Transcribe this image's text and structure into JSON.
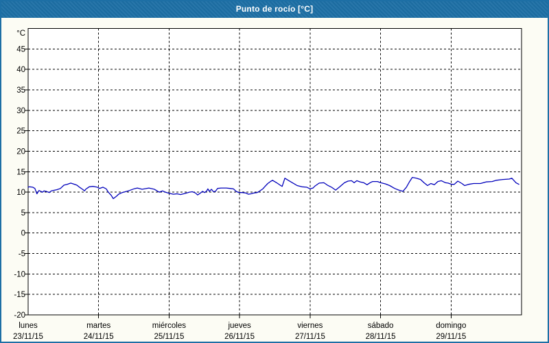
{
  "window": {
    "title": "Punto de rocío [°C]"
  },
  "colors": {
    "title_bar": "#1d6fa5",
    "title_text": "#ffffff",
    "page_bg": "#fcfcf4",
    "page_border": "#1d6fa5",
    "plot_bg": "#ffffff",
    "axis": "#000000",
    "grid": "#000000",
    "label_text": "#000000",
    "line": "#0000bb"
  },
  "chart_data": {
    "type": "line",
    "title": "Punto de rocío [°C]",
    "ylabel": "°C",
    "xlabel": "",
    "ylim": [
      -20,
      50
    ],
    "y_ticks": [
      45,
      40,
      35,
      30,
      25,
      20,
      15,
      10,
      5,
      0,
      -5,
      -10,
      -15,
      -20
    ],
    "x_unit": "hours",
    "xlim": [
      0,
      168
    ],
    "hours_per_day": 24,
    "grid": "dashed",
    "legend_position": "none",
    "x_days": [
      {
        "name": "lunes",
        "date": "23/11/15"
      },
      {
        "name": "martes",
        "date": "24/11/15"
      },
      {
        "name": "miércoles",
        "date": "25/11/15"
      },
      {
        "name": "jueves",
        "date": "26/11/15"
      },
      {
        "name": "viernes",
        "date": "27/11/15"
      },
      {
        "name": "sábado",
        "date": "28/11/15"
      },
      {
        "name": "domingo",
        "date": "29/11/15"
      }
    ],
    "series": [
      {
        "name": "Punto de rocío",
        "color": "#0000bb",
        "points": [
          [
            0,
            11.2
          ],
          [
            0.5,
            11.3
          ],
          [
            1.6,
            11.2
          ],
          [
            2.3,
            10.9
          ],
          [
            3,
            9.6
          ],
          [
            3.7,
            10.4
          ],
          [
            4.9,
            10
          ],
          [
            5.4,
            10.3
          ],
          [
            6.1,
            10.2
          ],
          [
            7.2,
            9.9
          ],
          [
            7.9,
            10.3
          ],
          [
            9.8,
            10.6
          ],
          [
            11,
            10.9
          ],
          [
            12.2,
            11.7
          ],
          [
            13.3,
            11.9
          ],
          [
            14.5,
            12.2
          ],
          [
            15.4,
            12
          ],
          [
            16.6,
            11.7
          ],
          [
            17.3,
            11.3
          ],
          [
            18.5,
            10.7
          ],
          [
            19.2,
            10.3
          ],
          [
            19.6,
            10.7
          ],
          [
            20.8,
            11.3
          ],
          [
            22,
            11.4
          ],
          [
            23.6,
            11.2
          ],
          [
            24.3,
            10.9
          ],
          [
            25.5,
            11.2
          ],
          [
            26.6,
            10.8
          ],
          [
            27.3,
            10
          ],
          [
            28.3,
            9.2
          ],
          [
            29,
            8.4
          ],
          [
            30.1,
            9
          ],
          [
            30.8,
            9.5
          ],
          [
            32,
            9.9
          ],
          [
            34.1,
            10.3
          ],
          [
            36,
            10.8
          ],
          [
            37.2,
            11
          ],
          [
            38.8,
            10.7
          ],
          [
            41.1,
            11
          ],
          [
            43,
            10.7
          ],
          [
            44.6,
            10
          ],
          [
            45.8,
            10.3
          ],
          [
            46.7,
            10
          ],
          [
            48.1,
            9.7
          ],
          [
            49.5,
            9.5
          ],
          [
            50.7,
            9.6
          ],
          [
            51.9,
            9.4
          ],
          [
            53.5,
            9.7
          ],
          [
            54.9,
            10
          ],
          [
            55.9,
            10.1
          ],
          [
            57,
            9.8
          ],
          [
            57.7,
            9.3
          ],
          [
            58.7,
            9.8
          ],
          [
            59.4,
            10.2
          ],
          [
            60.1,
            9.9
          ],
          [
            60.8,
            10.3
          ],
          [
            61.2,
            10.8
          ],
          [
            61.7,
            10.2
          ],
          [
            62.4,
            10.7
          ],
          [
            63.1,
            10.1
          ],
          [
            63.8,
            10.2
          ],
          [
            64.5,
            10.9
          ],
          [
            65.7,
            11
          ],
          [
            67.5,
            11
          ],
          [
            68.7,
            10.9
          ],
          [
            69.9,
            10.8
          ],
          [
            70.8,
            10.2
          ],
          [
            71.7,
            9.9
          ],
          [
            72.9,
            9.9
          ],
          [
            74.1,
            9.8
          ],
          [
            75,
            9.5
          ],
          [
            75.9,
            9.6
          ],
          [
            76.9,
            9.8
          ],
          [
            78,
            9.9
          ],
          [
            78.7,
            10.2
          ],
          [
            79.9,
            10.8
          ],
          [
            80.8,
            11.5
          ],
          [
            81.6,
            12.1
          ],
          [
            82.5,
            12.6
          ],
          [
            83.2,
            12.9
          ],
          [
            84.6,
            12.3
          ],
          [
            85.8,
            11.7
          ],
          [
            86.5,
            11.4
          ],
          [
            87.4,
            13.4
          ],
          [
            88.1,
            13.1
          ],
          [
            89.5,
            12.5
          ],
          [
            90.2,
            12.2
          ],
          [
            91.6,
            11.6
          ],
          [
            93.2,
            11.3
          ],
          [
            94.9,
            11.2
          ],
          [
            96,
            10.8
          ],
          [
            97,
            11
          ],
          [
            97.7,
            11.5
          ],
          [
            99.1,
            12.2
          ],
          [
            100.7,
            12.3
          ],
          [
            101.9,
            11.7
          ],
          [
            103.3,
            11.2
          ],
          [
            104.7,
            10.5
          ],
          [
            106.1,
            11.3
          ],
          [
            107.7,
            12.3
          ],
          [
            108.9,
            12.7
          ],
          [
            110.1,
            12.8
          ],
          [
            111,
            12.3
          ],
          [
            111.9,
            12.8
          ],
          [
            113.1,
            12.5
          ],
          [
            114.3,
            12.3
          ],
          [
            115.4,
            11.8
          ],
          [
            116.4,
            12.3
          ],
          [
            117.3,
            12.6
          ],
          [
            118.9,
            12.6
          ],
          [
            120.1,
            12.3
          ],
          [
            121.7,
            12
          ],
          [
            123.1,
            11.6
          ],
          [
            124.8,
            10.9
          ],
          [
            126.2,
            10.5
          ],
          [
            127.6,
            10.2
          ],
          [
            128.8,
            11.2
          ],
          [
            129.9,
            12.6
          ],
          [
            130.8,
            13.6
          ],
          [
            132.2,
            13.4
          ],
          [
            133.6,
            13.1
          ],
          [
            134.8,
            12.3
          ],
          [
            136,
            11.6
          ],
          [
            137.1,
            12.1
          ],
          [
            138.3,
            11.8
          ],
          [
            139.5,
            12.6
          ],
          [
            140.7,
            12.8
          ],
          [
            142.1,
            12.3
          ],
          [
            143,
            12.2
          ],
          [
            144.2,
            11.9
          ],
          [
            145.1,
            11.9
          ],
          [
            146.3,
            12.7
          ],
          [
            147.7,
            12.1
          ],
          [
            148.6,
            11.6
          ],
          [
            150,
            11.9
          ],
          [
            151.7,
            12.1
          ],
          [
            154,
            12.1
          ],
          [
            155.9,
            12.5
          ],
          [
            158,
            12.6
          ],
          [
            159.4,
            12.9
          ],
          [
            161.7,
            13.1
          ],
          [
            163.8,
            13.2
          ],
          [
            164.7,
            13.4
          ],
          [
            166.1,
            12.3
          ],
          [
            167.1,
            11.9
          ]
        ]
      }
    ]
  }
}
